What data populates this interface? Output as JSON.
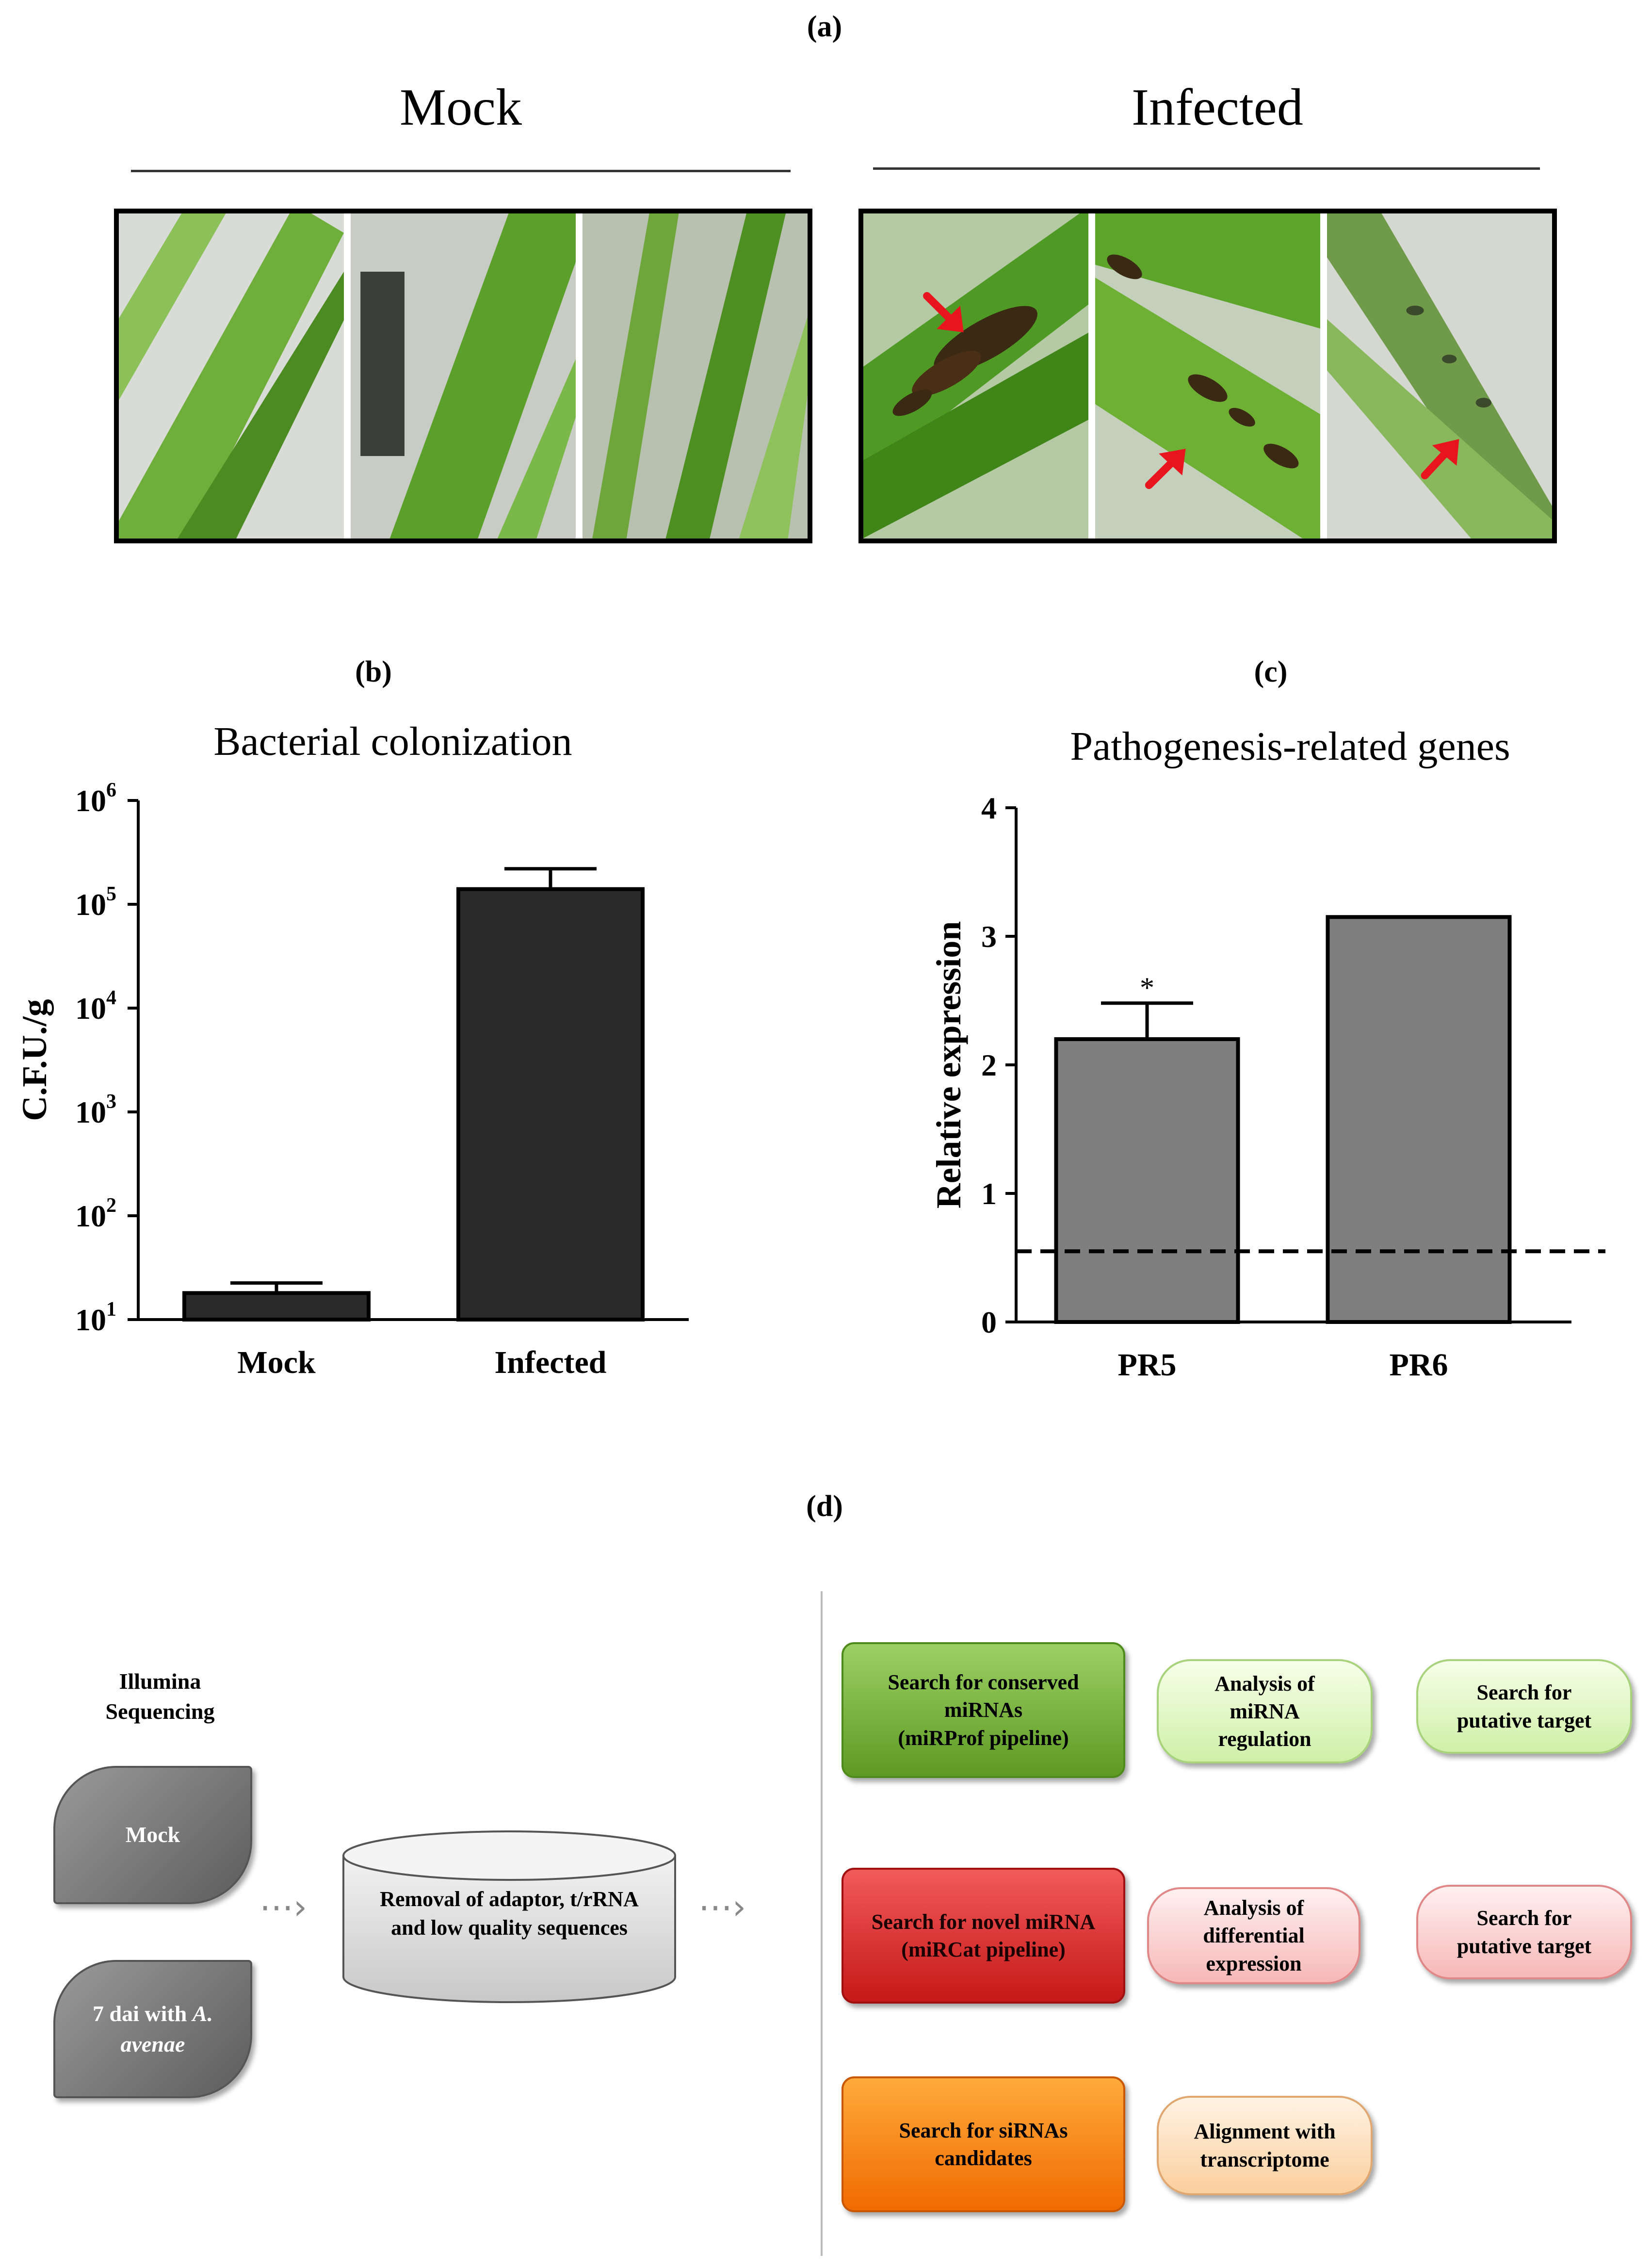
{
  "panels": {
    "a": "(a)",
    "b": "(b)",
    "c": "(c)",
    "d": "(d)"
  },
  "panel_a": {
    "mock_label": "Mock",
    "infected_label": "Infected",
    "lesion_arrow_color": "#e8141e"
  },
  "chart_data": [
    {
      "type": "bar",
      "title": "Bacterial colonization",
      "ylabel": "C.F.U./g",
      "xlabel": "",
      "categories": [
        "Mock",
        "Infected"
      ],
      "values": [
        18,
        140000
      ],
      "errors": [
        4.5,
        80000
      ],
      "yscale": "log",
      "ylim": [
        10,
        1000000
      ],
      "ytick_labels": [
        {
          "base": "10",
          "exp": "1"
        },
        {
          "base": "10",
          "exp": "2"
        },
        {
          "base": "10",
          "exp": "3"
        },
        {
          "base": "10",
          "exp": "4"
        },
        {
          "base": "10",
          "exp": "5"
        },
        {
          "base": "10",
          "exp": "6"
        }
      ],
      "bar_color": "#2a2a2a",
      "grid": false
    },
    {
      "type": "bar",
      "title": "Pathogenesis-related genes",
      "ylabel": "Relative expression",
      "xlabel": "",
      "categories": [
        "PR5",
        "PR6"
      ],
      "values": [
        2.2,
        3.15
      ],
      "errors": [
        0.28,
        0.0
      ],
      "significance": [
        "*",
        ""
      ],
      "reference_line": 0.55,
      "ylim": [
        0,
        4
      ],
      "yticks": [
        "0",
        "1",
        "2",
        "3",
        "4"
      ],
      "bar_color": "#7f7f7f",
      "grid": false
    }
  ],
  "panel_d": {
    "sequencing_title_line1": "Illumina",
    "sequencing_title_line2": "Sequencing",
    "sample1": "Mock",
    "sample2_part1": "7 dai with ",
    "sample2_part2": "A.",
    "sample2_part3": "avenae",
    "filter_line1": "Removal of adaptor, t/rRNA",
    "filter_line2": "and low quality sequences",
    "rows": [
      {
        "dark": [
          "Search for conserved",
          "miRNAs",
          "(miRProf pipeline)"
        ],
        "mid": [
          "Analysis of",
          "miRNA",
          "regulation"
        ],
        "right": [
          "Search for",
          "putative target"
        ]
      },
      {
        "dark": [
          "Search for novel miRNA",
          "(miRCat pipeline)"
        ],
        "mid": [
          "Analysis of",
          "differential",
          "expression"
        ],
        "right": [
          "Search for",
          "putative target"
        ]
      },
      {
        "dark": [
          "Search for siRNAs",
          "candidates"
        ],
        "mid": [
          "Alignment with",
          "transcriptome"
        ]
      }
    ]
  }
}
